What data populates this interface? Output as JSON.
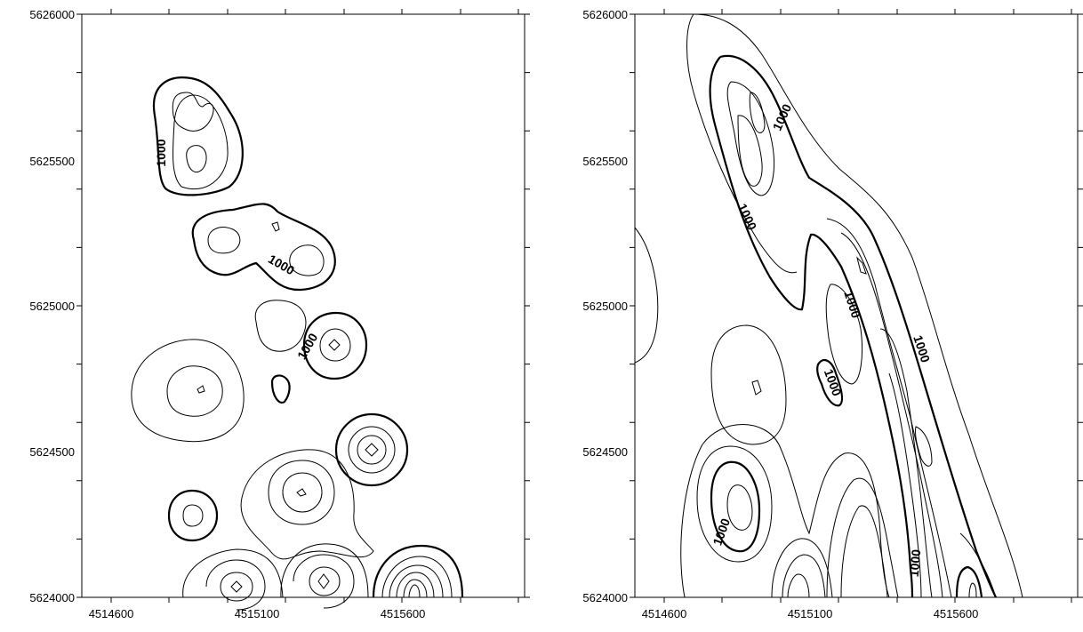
{
  "chart_data": [
    {
      "type": "contour",
      "title": "",
      "xlabel": "",
      "ylabel": "",
      "xlim": [
        4514500,
        4515930
      ],
      "ylim": [
        5624000,
        5626000
      ],
      "x_tick_labels": [
        "4514600",
        "4515100",
        "4515600"
      ],
      "y_tick_labels": [
        "5624000",
        "5624500",
        "5625000",
        "5625500",
        "5626000"
      ],
      "contour_labels": [
        "1000",
        "1000",
        "1000",
        "1000"
      ],
      "index_contour_level": 1000,
      "grid": false
    },
    {
      "type": "contour",
      "title": "",
      "xlabel": "",
      "ylabel": "",
      "xlim": [
        4514500,
        4515930
      ],
      "ylim": [
        5624000,
        5626000
      ],
      "x_tick_labels": [
        "4514600",
        "4515100",
        "4515600"
      ],
      "y_tick_labels": [
        "5624000",
        "5624500",
        "5625000",
        "5625500",
        "5626000"
      ],
      "contour_labels": [
        "1000",
        "1000",
        "1000",
        "1000",
        "1000"
      ],
      "index_contour_level": 1000,
      "grid": false
    }
  ]
}
